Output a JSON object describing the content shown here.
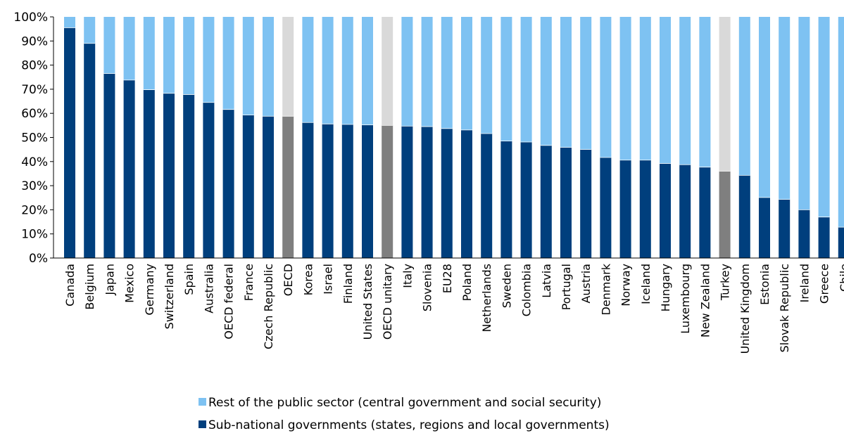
{
  "chart_data": {
    "type": "bar",
    "stacked": true,
    "percent_axis": true,
    "ylim": [
      0,
      100
    ],
    "y_ticks": [
      0,
      10,
      20,
      30,
      40,
      50,
      60,
      70,
      80,
      90,
      100
    ],
    "y_tick_labels": [
      "0%",
      "10%",
      "20%",
      "30%",
      "40%",
      "50%",
      "60%",
      "70%",
      "80%",
      "90%",
      "100%"
    ],
    "categories": [
      "Canada",
      "Belgium",
      "Japan",
      "Mexico",
      "Germany",
      "Switzerland",
      "Spain",
      "Australia",
      "OECD federal",
      "France",
      "Czech Republic",
      "OECD",
      "Korea",
      "Israel",
      "Finland",
      "United States",
      "OECD unitary",
      "Italy",
      "Slovenia",
      "EU28",
      "Poland",
      "Netherlands",
      "Sweden",
      "Colombia",
      "Latvia",
      "Portugal",
      "Austria",
      "Denmark",
      "Norway",
      "Iceland",
      "Hungary",
      "Luxembourg",
      "New Zealand",
      "Turkey",
      "United Kingdom",
      "Estonia",
      "Slovak Republic",
      "Ireland",
      "Greece",
      "Chile"
    ],
    "highlighted": [
      "OECD",
      "OECD unitary",
      "Turkey"
    ],
    "series": [
      {
        "name": "Sub-national governments (states, regions and local governments)",
        "color": "#003f7d",
        "highlight_color": "#7f7f7f",
        "values": [
          95.5,
          89,
          76.5,
          73.8,
          69.8,
          68.3,
          67.8,
          64.5,
          61.6,
          59.3,
          58.8,
          58.8,
          56.2,
          55.6,
          55.4,
          55.2,
          55,
          54.7,
          54.5,
          53.7,
          53.1,
          51.6,
          48.5,
          48.1,
          46.7,
          45.9,
          45,
          41.7,
          40.6,
          40.6,
          39.2,
          38.7,
          37.7,
          36,
          34.3,
          25.1,
          24.3,
          20,
          17,
          12.8
        ]
      },
      {
        "name": "Rest of the public sector (central government and social security)",
        "color": "#7ec2f2",
        "highlight_color": "#d9d9d9",
        "values": [
          4.5,
          11,
          23.5,
          26.2,
          30.2,
          31.7,
          32.2,
          35.5,
          38.4,
          40.7,
          41.2,
          41.2,
          43.8,
          44.4,
          44.6,
          44.8,
          45,
          45.3,
          45.5,
          46.3,
          46.9,
          48.4,
          51.5,
          51.9,
          53.3,
          54.1,
          55,
          58.3,
          59.4,
          59.4,
          60.8,
          61.3,
          62.3,
          64,
          65.7,
          74.9,
          75.7,
          80,
          83,
          87.2
        ]
      }
    ],
    "legend_position": "bottom",
    "grid": false
  }
}
